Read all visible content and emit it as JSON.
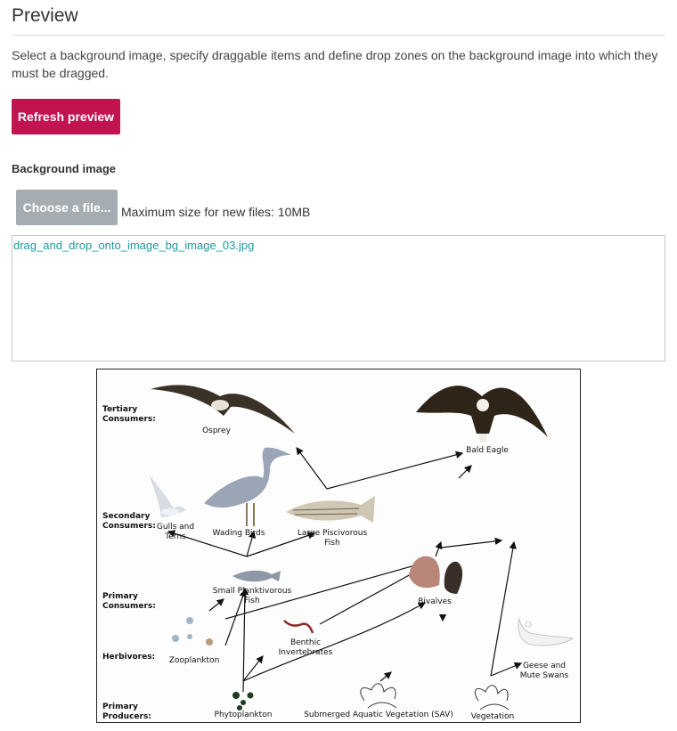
{
  "heading": "Preview",
  "intro": "Select a background image, specify draggable items and define drop zones on the background image into which they must be dragged.",
  "refresh_label": "Refresh preview",
  "background": {
    "label": "Background image",
    "choose_label": "Choose a file...",
    "max_size": "Maximum size for new files: 10MB",
    "file_name": "drag_and_drop_onto_image_bg_image_03.jpg"
  },
  "diagram": {
    "levels": {
      "tertiary": "Tertiary Consumers:",
      "secondary": "Secondary Consumers:",
      "primary": "Primary Consumers:",
      "herbivores": "Herbivores:",
      "producers": "Primary Producers:"
    },
    "organisms": {
      "osprey": "Osprey",
      "bald_eagle": "Bald Eagle",
      "gulls": "Gulls and Terns",
      "wading_birds": "Wading Birds",
      "piscivorous": "Large Piscivorous Fish",
      "planktivorous": "Small Planktivorous Fish",
      "bivalves": "Bivalves",
      "zooplankton": "Zooplankton",
      "benthic": "Benthic Invertebrates",
      "geese": "Geese and Mute Swans",
      "phytoplankton": "Phytoplankton",
      "sav": "Submerged Aquatic Vegetation (SAV)",
      "vegetation": "Vegetation"
    },
    "icons": [
      "osprey-icon",
      "eagle-icon",
      "gull-icon",
      "heron-icon",
      "bass-icon",
      "herring-icon",
      "clam-icon",
      "zooplankton-icon",
      "worm-icon",
      "swan-icon",
      "phytoplankton-icon",
      "sav-plant-icon",
      "vegetation-plant-icon"
    ]
  }
}
